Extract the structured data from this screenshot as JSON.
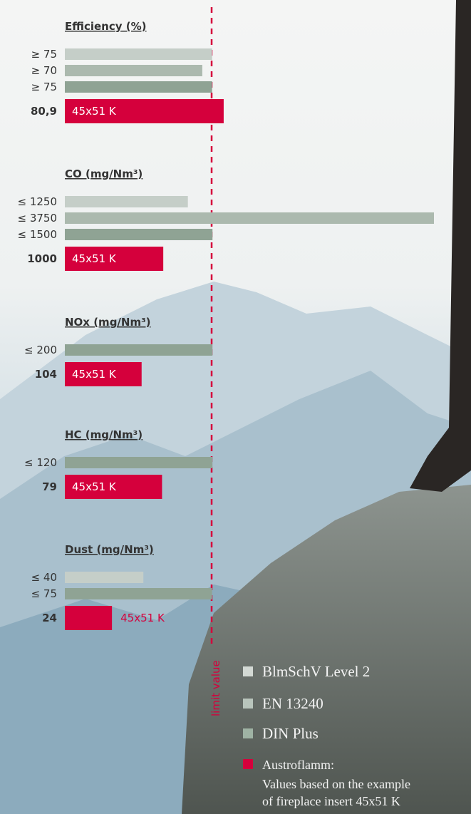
{
  "chart_data": [
    {
      "type": "bar",
      "title": "Efficiency (%)",
      "values": [
        75,
        70,
        75,
        80.9
      ],
      "value_labels": [
        "≥ 75",
        "≥ 70",
        "≥ 75",
        "80,9"
      ],
      "colors": [
        "#c5cec8",
        "#abb9ae",
        "#8fa394",
        "#d5003c"
      ],
      "bar_label": "45x51 K",
      "xlim": [
        0,
        188
      ]
    },
    {
      "type": "bar",
      "title": "CO (mg/Nm³)",
      "values": [
        1250,
        3750,
        1500,
        1000
      ],
      "value_labels": [
        "≤ 1250",
        "≤ 3750",
        "≤ 1500",
        "1000"
      ],
      "colors": [
        "#c5cec8",
        "#abb9ae",
        "#8fa394",
        "#d5003c"
      ],
      "bar_label": "45x51 K",
      "xlim": [
        0,
        3750
      ]
    },
    {
      "type": "bar",
      "title": "NOx (mg/Nm³)",
      "values": [
        200,
        104
      ],
      "value_labels": [
        "≤ 200",
        "104"
      ],
      "colors": [
        "#8fa394",
        "#d5003c"
      ],
      "bar_label": "45x51 K",
      "xlim": [
        0,
        500
      ]
    },
    {
      "type": "bar",
      "title": "HC (mg/Nm³)",
      "values": [
        120,
        79
      ],
      "value_labels": [
        "≤ 120",
        "79"
      ],
      "colors": [
        "#8fa394",
        "#d5003c"
      ],
      "bar_label": "45x51 K",
      "xlim": [
        0,
        300
      ]
    },
    {
      "type": "bar",
      "title": "Dust (mg/Nm³)",
      "values": [
        40,
        75,
        24
      ],
      "value_labels": [
        "≤ 40",
        "≤ 75",
        "24"
      ],
      "colors": [
        "#c5cec8",
        "#8fa394",
        "#d5003c"
      ],
      "bar_label": "45x51 K",
      "xlim": [
        0,
        188
      ]
    }
  ],
  "limit_label": "limit value",
  "legend": {
    "items": [
      {
        "name": "BlmSchV Level 2",
        "color": "#d3d9d4"
      },
      {
        "name": "EN 13240",
        "color": "#b9c5bc"
      },
      {
        "name": "DIN Plus",
        "color": "#9fb3a4"
      },
      {
        "name": "Austroflamm:",
        "color": "#d5003c"
      }
    ],
    "note": [
      "Values based on the example",
      "of fireplace insert 45x51 K"
    ]
  }
}
